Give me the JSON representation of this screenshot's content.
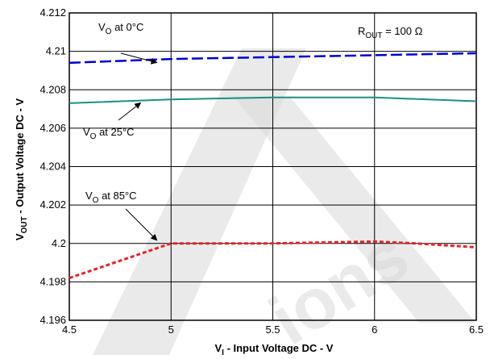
{
  "chart_data": {
    "type": "line",
    "xlabel": "V",
    "xlabel_sub": "I",
    "xlabel_rest": " - Input Voltage DC - V",
    "ylabel": "V",
    "ylabel_sub": "OUT",
    "ylabel_rest": " - Output Voltage DC - V",
    "xlim": [
      4.5,
      6.5
    ],
    "ylim": [
      4.196,
      4.212
    ],
    "xticks": [
      "4.5",
      "5",
      "5.5",
      "6",
      "6.5"
    ],
    "yticks": [
      "4.196",
      "4.198",
      "4.2",
      "4.202",
      "4.204",
      "4.206",
      "4.208",
      "4.21",
      "4.212"
    ],
    "grid": true,
    "series": [
      {
        "name": "VO at 0°C",
        "color": "#0000cc",
        "dash": "long-dash",
        "x": [
          4.5,
          5.0,
          5.5,
          6.0,
          6.5
        ],
        "y": [
          4.2094,
          4.2096,
          4.2097,
          4.2098,
          4.2099
        ]
      },
      {
        "name": "VO at 25°C",
        "color": "#1a9080",
        "dash": "solid",
        "x": [
          4.5,
          5.0,
          5.5,
          6.0,
          6.5
        ],
        "y": [
          4.2073,
          4.2075,
          4.2076,
          4.2076,
          4.2074
        ]
      },
      {
        "name": "VO at 85°C",
        "color": "#e0262b",
        "dash": "dotted",
        "x": [
          4.5,
          5.0,
          5.5,
          6.0,
          6.2,
          6.5
        ],
        "y": [
          4.1982,
          4.2,
          4.2,
          4.2001,
          4.2,
          4.1998
        ]
      }
    ],
    "annotations": [
      {
        "id": "a0",
        "main": "V",
        "sub": "O",
        "rest": " at 0°C"
      },
      {
        "id": "a25",
        "main": "V",
        "sub": "O",
        "rest": " at 25°C"
      },
      {
        "id": "a85",
        "main": "V",
        "sub": "O",
        "rest": " at 85°C"
      },
      {
        "id": "rout",
        "main": "R",
        "sub": "OUT",
        "rest": " = 100 Ω"
      }
    ],
    "watermark": "ions"
  }
}
